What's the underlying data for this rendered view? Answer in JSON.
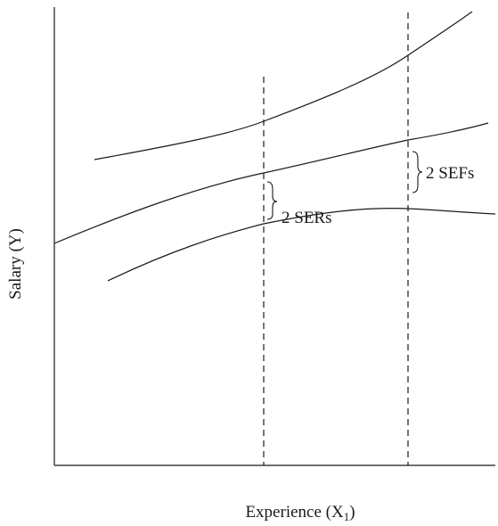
{
  "figure": {
    "x_axis_label": "Experience (X",
    "x_axis_label_subscript": "1",
    "x_axis_label_close": ")",
    "y_axis_label": "Salary (Y)",
    "annotations": {
      "ser": "2 SERs",
      "sef": "2 SEFs"
    }
  },
  "colors": {
    "ink": "#1a1a1a",
    "background": "#ffffff"
  }
}
